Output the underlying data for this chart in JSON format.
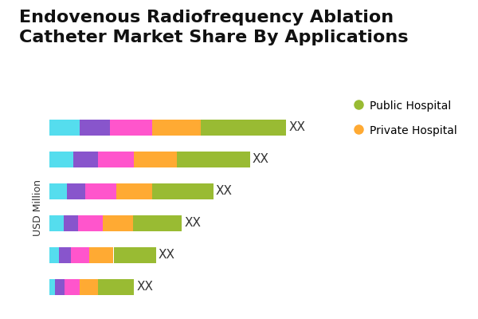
{
  "title": "Endovenous Radiofrequency Ablation\nCatheter Market Share By Applications",
  "ylabel": "USD Million",
  "bars": [
    [
      2.5,
      2.5,
      3.5,
      4.0,
      7.0
    ],
    [
      2.0,
      2.0,
      3.0,
      3.5,
      6.0
    ],
    [
      1.5,
      1.5,
      2.5,
      3.0,
      5.0
    ],
    [
      1.2,
      1.2,
      2.0,
      2.5,
      4.0
    ],
    [
      0.8,
      1.0,
      1.5,
      2.0,
      3.5
    ],
    [
      0.5,
      0.8,
      1.2,
      1.5,
      3.0
    ]
  ],
  "segment_colors": [
    "#55DDEE",
    "#8855CC",
    "#FF55CC",
    "#FFAA33",
    "#99BB33"
  ],
  "bar_label": "XX",
  "legend_items": [
    {
      "label": "Public Hospital",
      "color": "#99BB33"
    },
    {
      "label": "Private Hospital",
      "color": "#FFAA33"
    }
  ],
  "background_color": "#FFFFFF",
  "title_fontsize": 16,
  "label_fontsize": 11,
  "ylabel_fontsize": 9,
  "legend_fontsize": 10,
  "bar_height": 0.5,
  "num_bars": 6
}
